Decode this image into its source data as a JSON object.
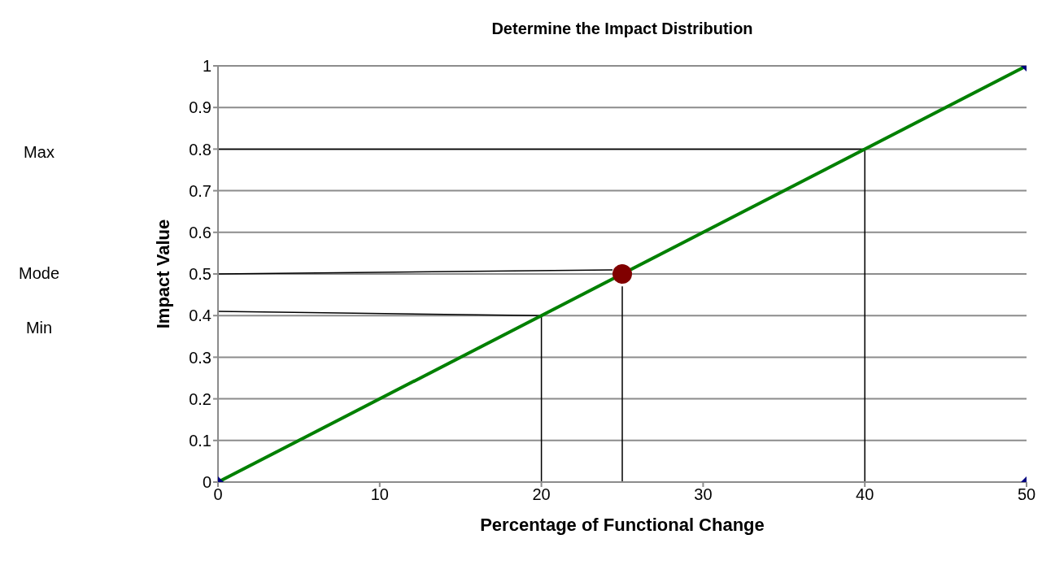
{
  "chart_data": {
    "type": "line",
    "title": "Determine the Impact Distribution",
    "xlabel": "Percentage of Functional Change",
    "ylabel": "Impact Value",
    "xlim": [
      0,
      50
    ],
    "xticks": [
      0,
      10,
      20,
      30,
      40,
      50
    ],
    "ylim": [
      0,
      1
    ],
    "yticks": [
      0,
      0.1,
      0.2,
      0.3,
      0.4,
      0.5,
      0.6,
      0.7,
      0.8,
      0.9,
      1
    ],
    "grid": "y",
    "series": [
      {
        "color": "#000000",
        "marker": "none",
        "x": [
          0,
          40,
          40
        ],
        "values": [
          0.8,
          0.8,
          0
        ]
      },
      {
        "color": "#000000",
        "marker": "none",
        "x": [
          0,
          24.4
        ],
        "values": [
          0.5,
          0.51
        ]
      },
      {
        "color": "#000000",
        "marker": "none",
        "x": [
          25,
          25
        ],
        "values": [
          0.47,
          0
        ]
      },
      {
        "color": "#000000",
        "marker": "none",
        "x": [
          0,
          20,
          20
        ],
        "values": [
          0.41,
          0.4,
          0
        ]
      },
      {
        "color": "#008000",
        "marker": "none",
        "x": [
          0,
          50
        ],
        "values": [
          0,
          1
        ]
      },
      {
        "type": "scatter",
        "color": "#000080",
        "marker": "diamond",
        "x": [
          0,
          50,
          50
        ],
        "values": [
          0,
          1,
          0
        ]
      },
      {
        "type": "scatter",
        "color": "#800000",
        "marker": "circle",
        "x": [
          25
        ],
        "values": [
          0.5
        ]
      }
    ],
    "annotations": [
      "Max",
      "Mode",
      "Min"
    ]
  }
}
